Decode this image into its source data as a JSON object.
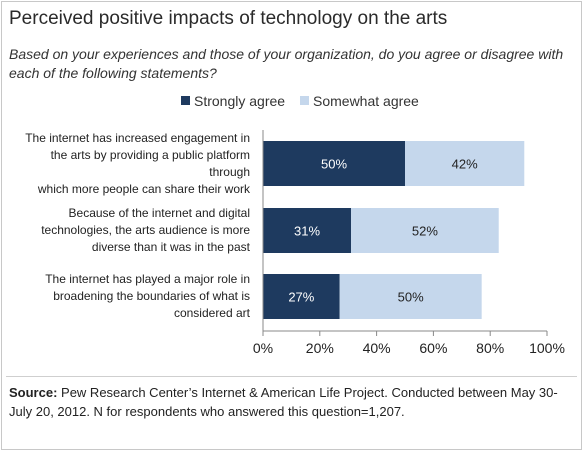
{
  "title": "Perceived positive impacts of technology on the arts",
  "subtitle": "Based on your experiences and those of your organization, do you agree or disagree with each of the following statements?",
  "source": {
    "label": "Source:",
    "text": "Pew Research Center’s Internet & American Life Project. Conducted between May 30-July 20, 2012. N for respondents who answered this question=1,207."
  },
  "colors": {
    "strong": "#1e3a5f",
    "somewhat": "#c5d7ec",
    "axis": "#888888"
  },
  "chart_data": {
    "type": "bar",
    "orientation": "horizontal",
    "stacked": true,
    "categories": [
      [
        "The internet has increased engagement in",
        "the arts by providing a public platform",
        "through",
        "which more people can share their work"
      ],
      [
        "Because of the internet and digital",
        "technologies, the arts audience is more",
        "diverse than it was in the past"
      ],
      [
        "The internet has played a major role in",
        "broadening the boundaries of what is",
        "considered art"
      ]
    ],
    "series": [
      {
        "name": "Strongly agree",
        "values": [
          50,
          31,
          27
        ],
        "labels": [
          "50%",
          "31%",
          "27%"
        ]
      },
      {
        "name": "Somewhat agree",
        "values": [
          42,
          52,
          50
        ],
        "labels": [
          "42%",
          "52%",
          "50%"
        ]
      }
    ],
    "xlim": [
      0,
      100
    ],
    "xticks": [
      0,
      20,
      40,
      60,
      80,
      100
    ],
    "xtick_labels": [
      "0%",
      "20%",
      "40%",
      "60%",
      "80%",
      "100%"
    ],
    "legend": "top",
    "grid": false
  }
}
